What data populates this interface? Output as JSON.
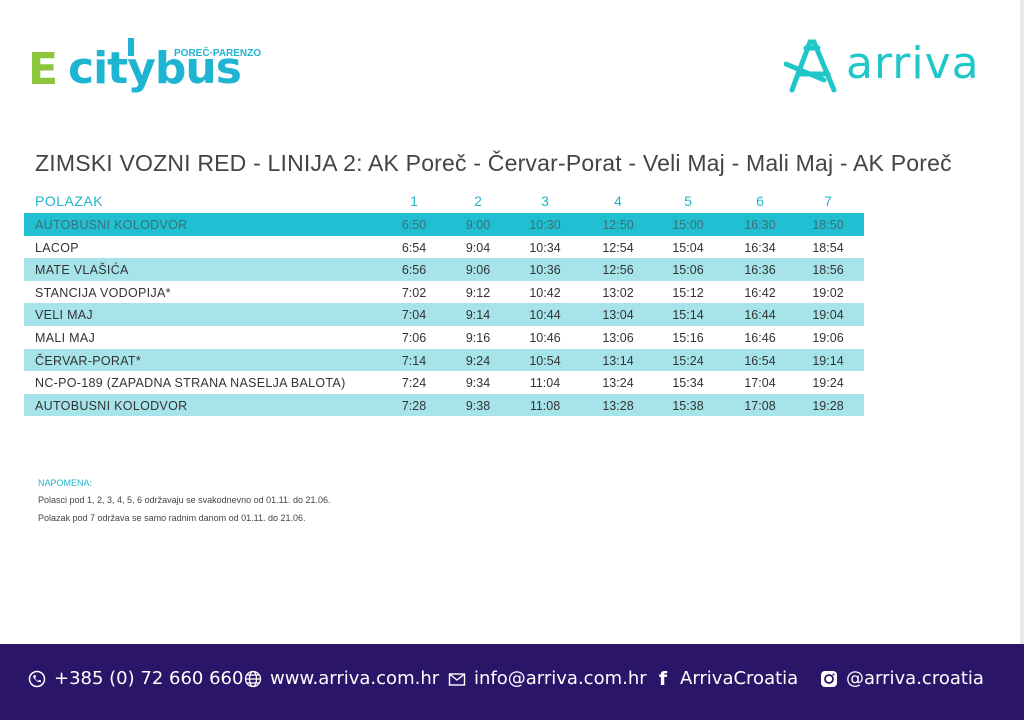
{
  "logos": {
    "citybus_e": "E",
    "citybus_word": "citybus",
    "citybus_sub": "POREČ·PARENZO",
    "arriva_word": "arriva"
  },
  "title": "ZIMSKI VOZNI RED - LINIJA 2: AK Poreč - Červar-Porat - Veli Maj - Mali Maj - AK Poreč",
  "table": {
    "header_label": "POLAZAK",
    "columns": [
      "1",
      "2",
      "3",
      "4",
      "5",
      "6",
      "7"
    ],
    "rows": [
      {
        "stop": "AUTOBUSNI  KOLODVOR",
        "times": [
          "6:50",
          "9:00",
          "10:30",
          "12:50",
          "15:00",
          "16:30",
          "18:50"
        ]
      },
      {
        "stop": "LACOP",
        "times": [
          "6:54",
          "9:04",
          "10:34",
          "12:54",
          "15:04",
          "16:34",
          "18:54"
        ]
      },
      {
        "stop": "MATE VLAŠIĆA",
        "times": [
          "6:56",
          "9:06",
          "10:36",
          "12:56",
          "15:06",
          "16:36",
          "18:56"
        ]
      },
      {
        "stop": "STANCIJA VODOPIJA*",
        "times": [
          "7:02",
          "9:12",
          "10:42",
          "13:02",
          "15:12",
          "16:42",
          "19:02"
        ]
      },
      {
        "stop": "VELI MAJ",
        "times": [
          "7:04",
          "9:14",
          "10:44",
          "13:04",
          "15:14",
          "16:44",
          "19:04"
        ]
      },
      {
        "stop": "MALI MAJ",
        "times": [
          "7:06",
          "9:16",
          "10:46",
          "13:06",
          "15:16",
          "16:46",
          "19:06"
        ]
      },
      {
        "stop": "ČERVAR-PORAT*",
        "times": [
          "7:14",
          "9:24",
          "10:54",
          "13:14",
          "15:24",
          "16:54",
          "19:14"
        ]
      },
      {
        "stop": "NC-PO-189 (ZAPADNA STRANA NASELJA BALOTA)",
        "times": [
          "7:24",
          "9:34",
          "11:04",
          "13:24",
          "15:34",
          "17:04",
          "19:24"
        ]
      },
      {
        "stop": "AUTOBUSNI KOLODVOR",
        "times": [
          "7:28",
          "9:38",
          "11:08",
          "13:28",
          "15:38",
          "17:08",
          "19:28"
        ]
      }
    ]
  },
  "notes": {
    "heading": "NAPOMENA:",
    "line1": "Polasci pod 1, 2, 3, 4, 5, 6 održavaju se svakodnevno od 01.11. do 21.06.",
    "line2": "Polazak pod 7 održava se samo radnim danom od 01.11. do 21.06."
  },
  "footer": {
    "phone": "+385 (0) 72 660 660",
    "website": "www.arriva.com.hr",
    "email": "info@arriva.com.hr",
    "facebook": "ArrivaCroatia",
    "instagram": "@arriva.croatia"
  },
  "colors": {
    "cyan_row": "#a6e4ea",
    "first_row": "#20bfd1",
    "footer_bg": "#2b1569",
    "accent": "#21b6c8",
    "citybus_green": "#8cc63f"
  }
}
